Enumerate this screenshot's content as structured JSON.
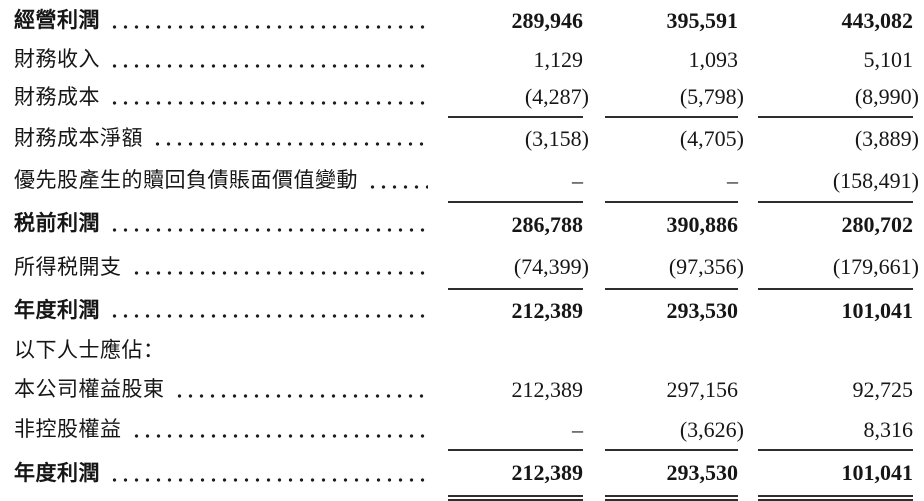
{
  "document": {
    "kind": "income-statement-excerpt",
    "language": "zh-Hant",
    "text_color": "#161616",
    "rule_color": "#2e2e2e",
    "nil_symbol": "–"
  },
  "table": {
    "num_value_columns": 3,
    "rows": [
      {
        "label": "經營利潤",
        "values": [
          "289,946",
          "395,591",
          "443,082"
        ],
        "bold": true,
        "leader": true,
        "rule_below": "none"
      },
      {
        "label": "財務收入",
        "values": [
          "1,129",
          "1,093",
          "5,101"
        ],
        "bold": false,
        "leader": true,
        "rule_below": "none"
      },
      {
        "label": "財務成本",
        "values": [
          "(4,287)",
          "(5,798)",
          "(8,990)"
        ],
        "bold": false,
        "leader": true,
        "rule_below": "single"
      },
      {
        "label": "財務成本淨額",
        "values": [
          "(3,158)",
          "(4,705)",
          "(3,889)"
        ],
        "bold": false,
        "leader": true,
        "rule_below": "none"
      },
      {
        "label": "優先股產生的贖回負債賬面價值變動",
        "values": [
          "–",
          "–",
          "(158,491)"
        ],
        "bold": false,
        "leader": true,
        "rule_below": "single"
      },
      {
        "label": "税前利潤",
        "values": [
          "286,788",
          "390,886",
          "280,702"
        ],
        "bold": true,
        "leader": true,
        "rule_below": "none"
      },
      {
        "label": "所得税開支",
        "values": [
          "(74,399)",
          "(97,356)",
          "(179,661)"
        ],
        "bold": false,
        "leader": true,
        "rule_below": "single"
      },
      {
        "label": "年度利潤",
        "values": [
          "212,389",
          "293,530",
          "101,041"
        ],
        "bold": true,
        "leader": true,
        "rule_below": "none"
      },
      {
        "label": "以下人士應佔：",
        "values": [
          "",
          "",
          ""
        ],
        "bold": false,
        "leader": false,
        "rule_below": "none"
      },
      {
        "label": "本公司權益股東",
        "values": [
          "212,389",
          "297,156",
          "92,725"
        ],
        "bold": false,
        "leader": true,
        "rule_below": "none"
      },
      {
        "label": "非控股權益",
        "values": [
          "–",
          "(3,626)",
          "8,316"
        ],
        "bold": false,
        "leader": true,
        "rule_below": "single"
      },
      {
        "label": "年度利潤",
        "values": [
          "212,389",
          "293,530",
          "101,041"
        ],
        "bold": true,
        "leader": true,
        "rule_below": "double"
      }
    ]
  }
}
